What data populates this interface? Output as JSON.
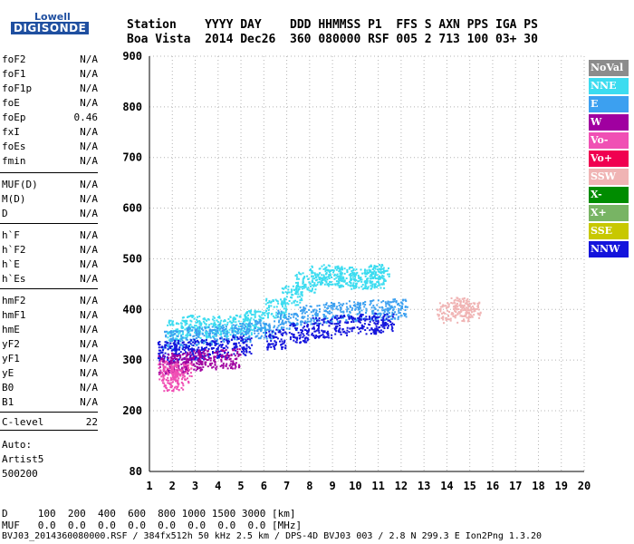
{
  "logo": {
    "line1": "Lowell",
    "line2": "DIGISONDE"
  },
  "header": {
    "row1": "Station    YYYY DAY    DDD HHMMSS P1  FFS S AXN PPS IGA PS",
    "row2": "Boa Vista  2014 Dec26  360 080000 RSF 005 2 713 100 03+ 30"
  },
  "params": {
    "group1": [
      {
        "name": "foF2",
        "value": "N/A"
      },
      {
        "name": "foF1",
        "value": "N/A"
      },
      {
        "name": "foF1p",
        "value": "N/A"
      },
      {
        "name": "foE",
        "value": "N/A"
      },
      {
        "name": "foEp",
        "value": "0.46"
      },
      {
        "name": "fxI",
        "value": "N/A"
      },
      {
        "name": "foEs",
        "value": "N/A"
      },
      {
        "name": "fmin",
        "value": "N/A"
      }
    ],
    "group2": [
      {
        "name": "MUF(D)",
        "value": "N/A"
      },
      {
        "name": "M(D)",
        "value": "N/A"
      },
      {
        "name": "D",
        "value": "N/A"
      }
    ],
    "group3": [
      {
        "name": "h`F",
        "value": "N/A"
      },
      {
        "name": "h`F2",
        "value": "N/A"
      },
      {
        "name": "h`E",
        "value": "N/A"
      },
      {
        "name": "h`Es",
        "value": "N/A"
      }
    ],
    "group4": [
      {
        "name": "hmF2",
        "value": "N/A"
      },
      {
        "name": "hmF1",
        "value": "N/A"
      },
      {
        "name": "hmE",
        "value": "N/A"
      },
      {
        "name": "yF2",
        "value": "N/A"
      },
      {
        "name": "yF1",
        "value": "N/A"
      },
      {
        "name": "yE",
        "value": "N/A"
      },
      {
        "name": "B0",
        "value": "N/A"
      },
      {
        "name": "B1",
        "value": "N/A"
      }
    ],
    "clevel": {
      "name": "C-level",
      "value": "22"
    }
  },
  "auto": {
    "line1": "Auto:",
    "line2": "Artist5",
    "line3": "500200"
  },
  "legend": [
    {
      "label": "NoVal",
      "color": "#8c8c8c"
    },
    {
      "label": "NNE",
      "color": "#3cdcf0"
    },
    {
      "label": "E",
      "color": "#3ca0f0"
    },
    {
      "label": "W",
      "color": "#a000a0"
    },
    {
      "label": "Vo-",
      "color": "#f050b4"
    },
    {
      "label": "Vo+",
      "color": "#f00050"
    },
    {
      "label": "SSW",
      "color": "#f0b4b4"
    },
    {
      "label": "X-",
      "color": "#008c00"
    },
    {
      "label": "X+",
      "color": "#78b464"
    },
    {
      "label": "SSE",
      "color": "#c8c800"
    },
    {
      "label": "NNW",
      "color": "#1414dc"
    }
  ],
  "footer": {
    "line1": "D     100  200  400  600  800 1000 1500 3000 [km]",
    "line2": "MUF   0.0  0.0  0.0  0.0  0.0  0.0  0.0  0.0 [MHz]",
    "line3": "BVJ03_2014360080000.RSF / 384fx512h 50 kHz 2.5 km / DPS-4D BVJ03 003 / 2.8 N 299.3 E Ion2Png 1.3.20"
  },
  "chart_data": {
    "type": "scatter",
    "xlim": [
      1,
      20
    ],
    "ylim": [
      80,
      900
    ],
    "xticks": [
      1,
      2,
      3,
      4,
      5,
      6,
      7,
      8,
      9,
      10,
      11,
      12,
      13,
      14,
      15,
      16,
      17,
      18,
      19,
      20
    ],
    "yticks": [
      80,
      200,
      300,
      400,
      500,
      600,
      700,
      800,
      900
    ],
    "series": [
      {
        "color": "#3cdcf0",
        "points": [
          [
            2.2,
            360
          ],
          [
            2.8,
            370
          ],
          [
            3.5,
            365
          ],
          [
            4.2,
            368
          ],
          [
            5.0,
            372
          ],
          [
            5.6,
            380
          ],
          [
            6.5,
            405
          ],
          [
            7.2,
            430
          ],
          [
            7.8,
            455
          ],
          [
            8.4,
            470
          ],
          [
            9.0,
            468
          ],
          [
            9.6,
            465
          ],
          [
            10.2,
            462
          ],
          [
            10.8,
            462
          ],
          [
            11.0,
            470
          ]
        ]
      },
      {
        "color": "#3ca0f0",
        "points": [
          [
            2.0,
            340
          ],
          [
            3.0,
            348
          ],
          [
            4.0,
            352
          ],
          [
            5.0,
            355
          ],
          [
            6.0,
            362
          ],
          [
            7.0,
            380
          ],
          [
            8.0,
            390
          ],
          [
            9.0,
            395
          ],
          [
            10.0,
            398
          ],
          [
            11.0,
            400
          ],
          [
            11.8,
            402
          ]
        ]
      },
      {
        "color": "#1414dc",
        "points": [
          [
            1.8,
            318
          ],
          [
            2.5,
            320
          ],
          [
            3.2,
            322
          ],
          [
            4.0,
            325
          ],
          [
            5.0,
            330
          ],
          [
            6.5,
            342
          ],
          [
            7.5,
            355
          ],
          [
            8.5,
            365
          ],
          [
            9.5,
            370
          ],
          [
            10.5,
            372
          ],
          [
            11.2,
            375
          ]
        ]
      },
      {
        "color": "#a000a0",
        "points": [
          [
            1.8,
            290
          ],
          [
            2.2,
            295
          ],
          [
            2.8,
            300
          ],
          [
            3.5,
            302
          ],
          [
            4.5,
            305
          ]
        ]
      },
      {
        "color": "#f050b4",
        "points": [
          [
            1.8,
            280
          ],
          [
            2.0,
            260
          ],
          [
            2.4,
            275
          ]
        ]
      },
      {
        "color": "#f0b4b4",
        "points": [
          [
            14.0,
            395
          ],
          [
            14.6,
            405
          ],
          [
            15.0,
            398
          ]
        ]
      }
    ]
  }
}
